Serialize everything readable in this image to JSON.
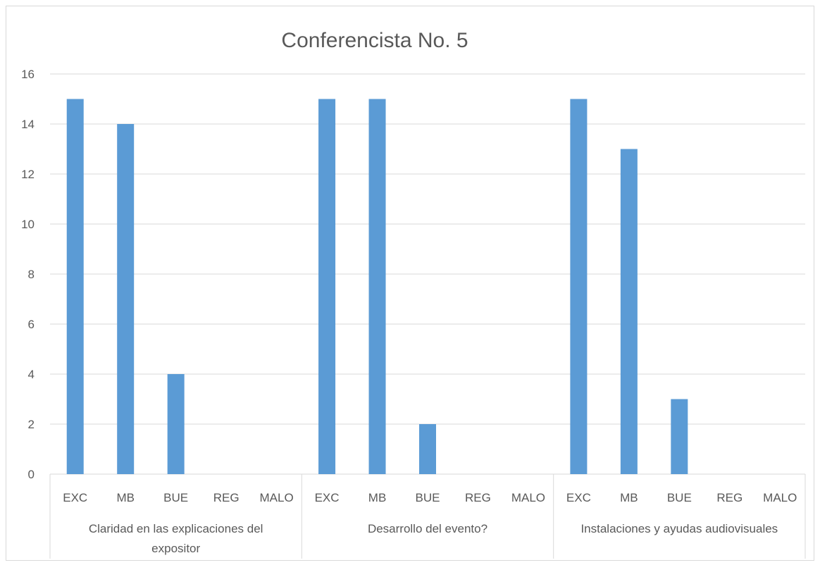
{
  "chart_data": {
    "type": "bar",
    "title": "Conferencista No. 5",
    "xlabel": "",
    "ylabel": "",
    "ylim": [
      0,
      16
    ],
    "yticks": [
      0,
      2,
      4,
      6,
      8,
      10,
      12,
      14,
      16
    ],
    "grid": true,
    "legend": "none",
    "bar_color": "#5b9bd5",
    "groups": [
      {
        "label": "Claridad en las explicaciones del expositor",
        "label_lines": [
          "Claridad en las explicaciones del",
          "expositor"
        ],
        "categories": [
          "EXC",
          "MB",
          "BUE",
          "REG",
          "MALO"
        ],
        "values": [
          15,
          14,
          4,
          0,
          0
        ]
      },
      {
        "label": "Desarrollo del evento?",
        "label_lines": [
          "Desarrollo del evento?"
        ],
        "categories": [
          "EXC",
          "MB",
          "BUE",
          "REG",
          "MALO"
        ],
        "values": [
          15,
          15,
          2,
          0,
          0
        ]
      },
      {
        "label": "Instalaciones y ayudas audiovisuales",
        "label_lines": [
          "Instalaciones y ayudas audiovisuales"
        ],
        "categories": [
          "EXC",
          "MB",
          "BUE",
          "REG",
          "MALO"
        ],
        "values": [
          15,
          13,
          3,
          0,
          0
        ]
      }
    ]
  }
}
